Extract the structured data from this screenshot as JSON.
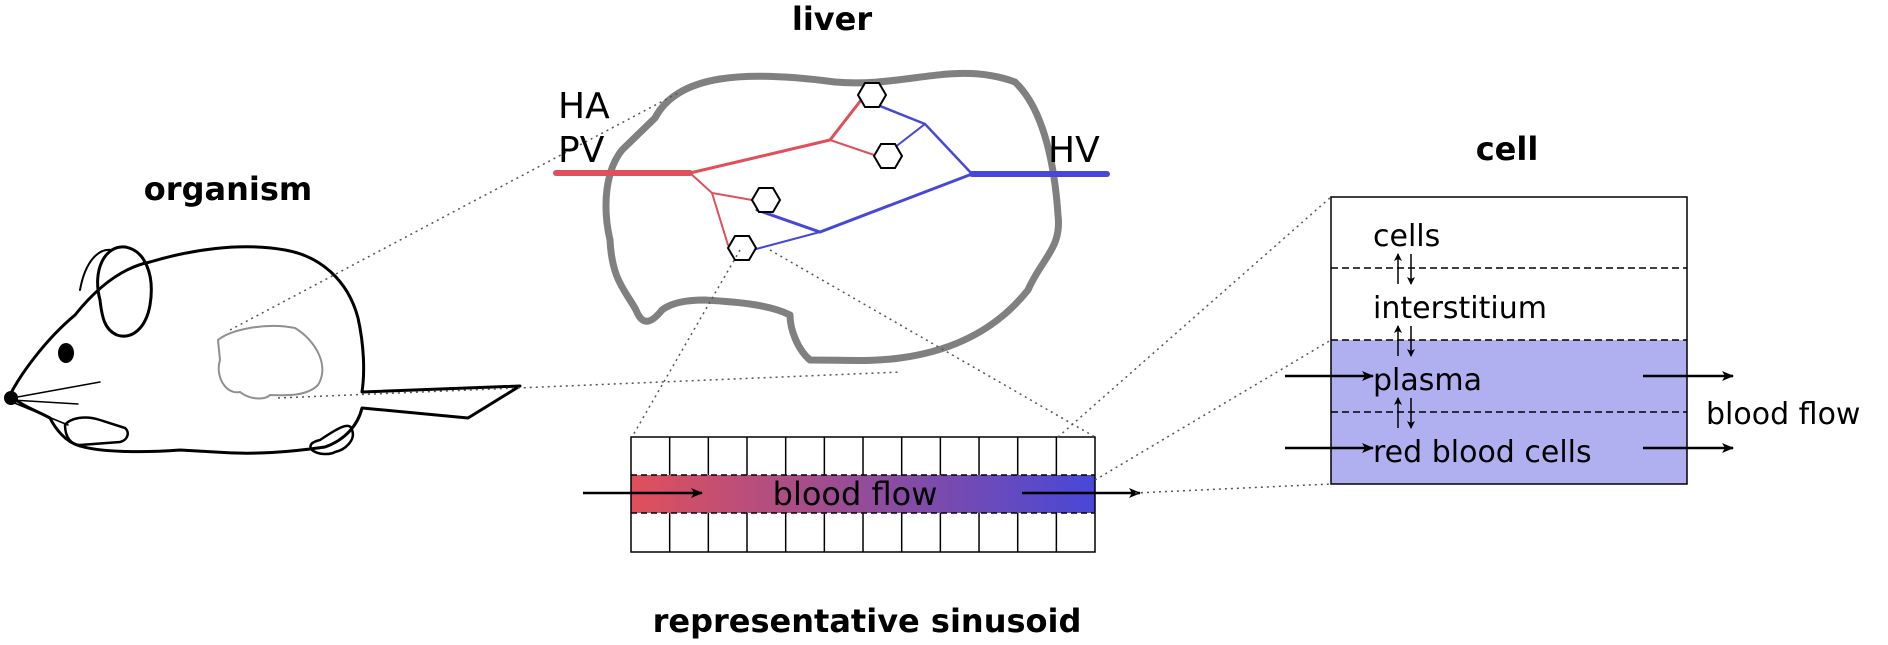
{
  "labels": {
    "organism": "organism",
    "liver": "liver",
    "ha": "HA",
    "pv": "PV",
    "hv": "HV",
    "cell": "cell",
    "sinusoid_title": "representative sinusoid",
    "sinusoid_flow": "blood flow",
    "cell_layers": [
      "cells",
      "interstitium",
      "plasma",
      "red blood cells"
    ],
    "cell_flow": "blood flow"
  },
  "colors": {
    "arterial": "#e0505a",
    "venous": "#4848d8",
    "liver_outline": "#808080",
    "blood_compartment": "#b0b0f0"
  }
}
